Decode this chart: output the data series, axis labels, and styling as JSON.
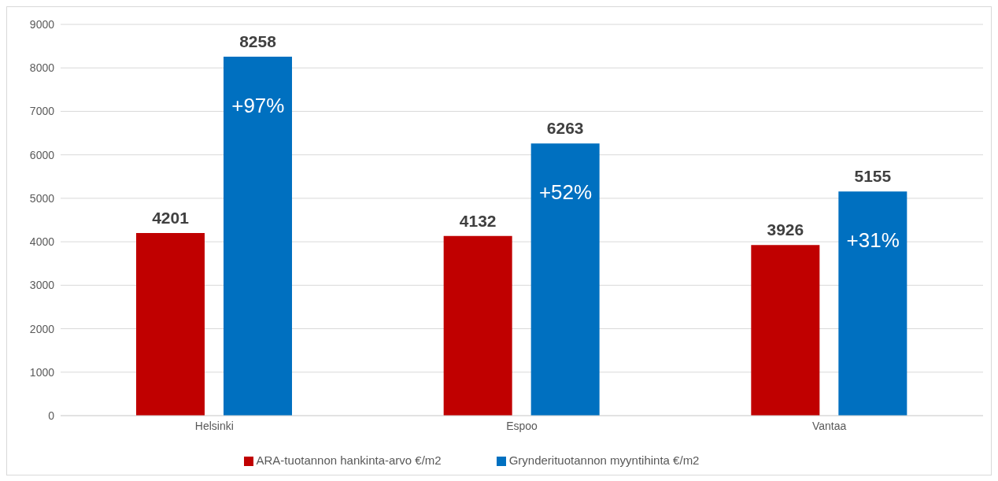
{
  "chart_data": {
    "type": "bar",
    "categories": [
      "Helsinki",
      "Espoo",
      "Vantaa"
    ],
    "series": [
      {
        "name": "ARA-tuotannon hankinta-arvo €/m2",
        "color": "#c00000",
        "values": [
          4201,
          4132,
          3926
        ]
      },
      {
        "name": "Grynderituotannon myyntihinta €/m2",
        "color": "#0070c0",
        "values": [
          8258,
          6263,
          5155
        ]
      }
    ],
    "ylim": [
      0,
      9000
    ],
    "yticks": [
      0,
      1000,
      2000,
      3000,
      4000,
      5000,
      6000,
      7000,
      8000,
      9000
    ],
    "grid": "y",
    "legend": "bottom",
    "data_labels": true,
    "annotations": [
      "+97%",
      "+52%",
      "+31%"
    ]
  }
}
